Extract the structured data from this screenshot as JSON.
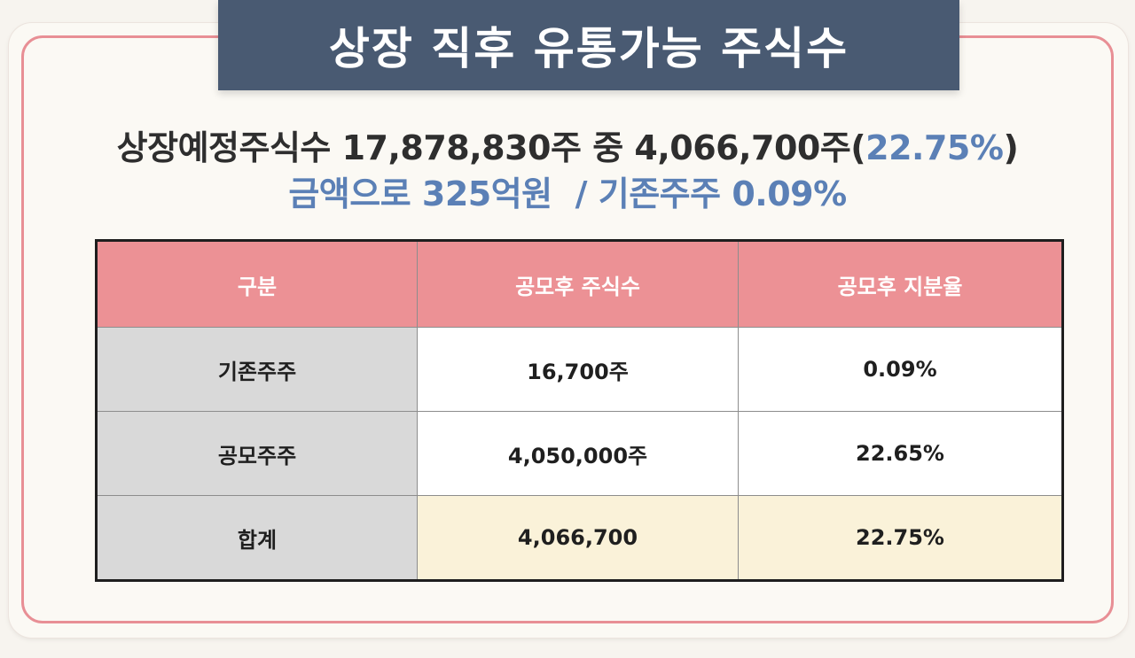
{
  "title": "상장 직후 유통가능 주식수",
  "summary": {
    "line1_prefix": "상장예정주식수 17,878,830주 중 4,066,700주(",
    "line1_highlight": "22.75%",
    "line1_suffix": ")",
    "line2_left": "금액으로 325억원",
    "line2_right": "/ 기존주주 0.09%"
  },
  "table": {
    "headers": [
      "구분",
      "공모후 주식수",
      "공모후 지분율"
    ],
    "rows": [
      {
        "label": "기존주주",
        "shares": "16,700주",
        "ratio": "0.09%"
      },
      {
        "label": "공모주주",
        "shares": "4,050,000주",
        "ratio": "22.65%"
      },
      {
        "label": "합계",
        "shares": "4,066,700",
        "ratio": "22.75%"
      }
    ]
  },
  "colors": {
    "banner": "#495a72",
    "frame_border": "#e88f95",
    "header_bg": "#ec9195",
    "label_bg": "#d9d9d9",
    "total_bg": "#faf2d9",
    "accent_text": "#5b80b6"
  }
}
